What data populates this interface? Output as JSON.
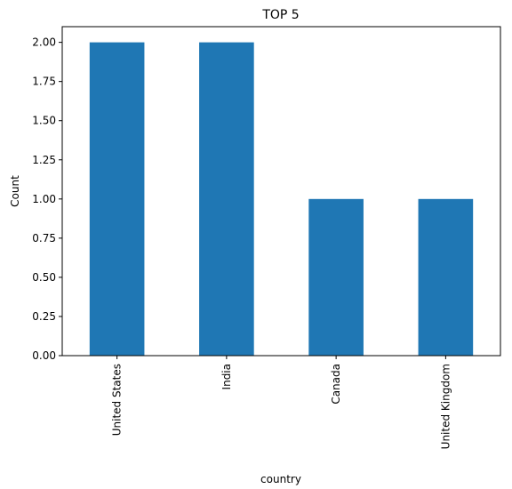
{
  "chart_data": {
    "type": "bar",
    "title": "TOP 5",
    "xlabel": "country",
    "ylabel": "Count",
    "categories": [
      "United States",
      "India",
      "Canada",
      "United Kingdom"
    ],
    "values": [
      2,
      2,
      1,
      1
    ],
    "ylim": [
      0,
      2.1
    ],
    "yticks": [
      "0.00",
      "0.25",
      "0.50",
      "0.75",
      "1.00",
      "1.25",
      "1.50",
      "1.75",
      "2.00"
    ],
    "bar_color": "#1f77b4",
    "grid": false,
    "legend": "none"
  }
}
